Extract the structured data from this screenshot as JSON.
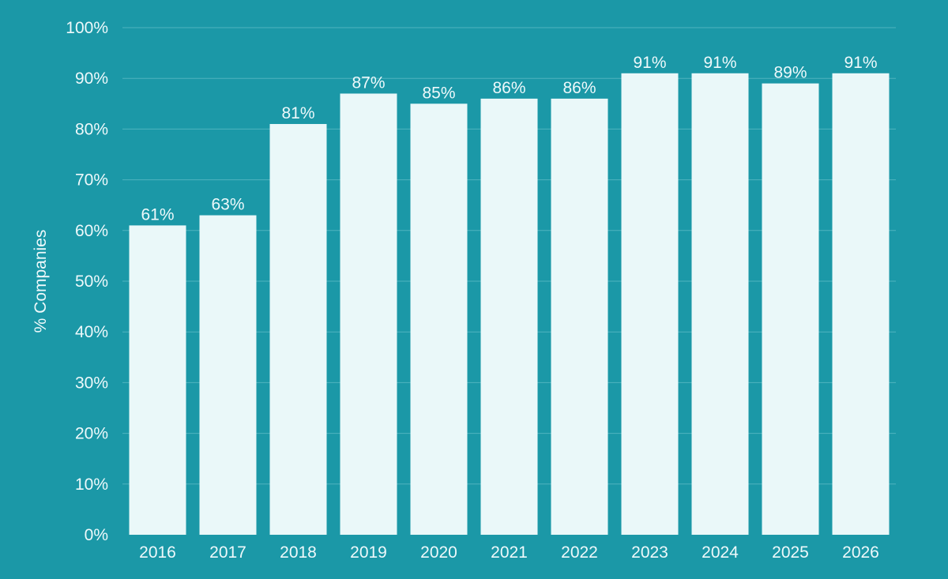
{
  "colors": {
    "background": "#1b98a7",
    "bar": "#eaf8f9",
    "text": "#eef9fb",
    "grid": "#4fb3bf"
  },
  "chart_data": {
    "type": "bar",
    "categories": [
      "2016",
      "2017",
      "2018",
      "2019",
      "2020",
      "2021",
      "2022",
      "2023",
      "2024",
      "2025",
      "2026"
    ],
    "values": [
      61,
      63,
      81,
      87,
      85,
      86,
      86,
      91,
      91,
      89,
      91
    ],
    "value_labels": [
      "61%",
      "63%",
      "81%",
      "87%",
      "85%",
      "86%",
      "86%",
      "91%",
      "91%",
      "89%",
      "91%"
    ],
    "ylabel": "% Companies",
    "ylim": [
      0,
      100
    ],
    "yticks": [
      0,
      10,
      20,
      30,
      40,
      50,
      60,
      70,
      80,
      90,
      100
    ],
    "ytick_labels": [
      "0%",
      "10%",
      "20%",
      "30%",
      "40%",
      "50%",
      "60%",
      "70%",
      "80%",
      "90%",
      "100%"
    ],
    "grid": true,
    "legend": "none"
  }
}
